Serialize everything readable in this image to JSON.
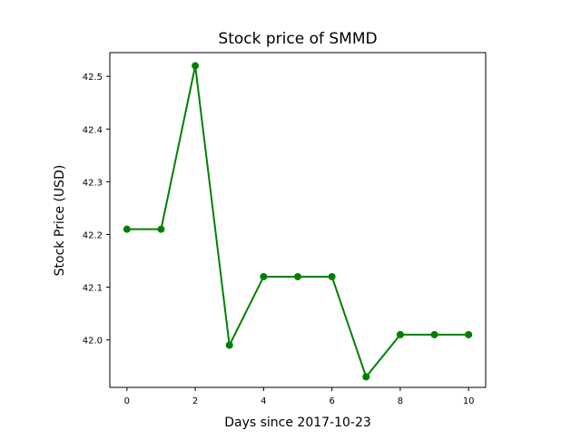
{
  "chart_data": {
    "type": "line",
    "title": "Stock price of SMMD",
    "xlabel": "Days since 2017-10-23",
    "ylabel": "Stock Price (USD)",
    "x": [
      0,
      1,
      2,
      3,
      4,
      5,
      6,
      7,
      8,
      9,
      10
    ],
    "series": [
      {
        "values": [
          42.21,
          42.21,
          42.52,
          41.99,
          42.12,
          42.12,
          42.12,
          41.93,
          42.01,
          42.01,
          42.01
        ],
        "color": "#008000",
        "marker": "circle"
      }
    ],
    "xlim": [
      -0.5,
      10.5
    ],
    "ylim": [
      41.91,
      42.545
    ],
    "xticks": [
      0,
      2,
      4,
      6,
      8,
      10
    ],
    "yticks": [
      42.0,
      42.1,
      42.2,
      42.3,
      42.4,
      42.5
    ],
    "xtick_labels": [
      "0",
      "2",
      "4",
      "6",
      "8",
      "10"
    ],
    "ytick_labels": [
      "42.0",
      "42.1",
      "42.2",
      "42.3",
      "42.4",
      "42.5"
    ],
    "grid": false,
    "legend": false
  }
}
